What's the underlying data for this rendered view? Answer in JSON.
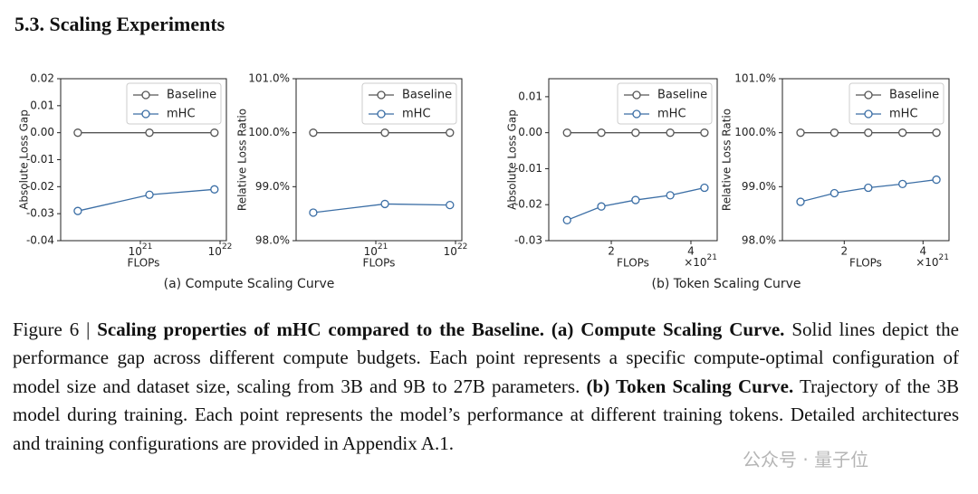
{
  "section_title": "5.3.  Scaling Experiments",
  "chart_data": [
    {
      "type": "line",
      "ylabel": "Absolute Loss Gap",
      "xlabel": "FLOPs",
      "xscale": "log",
      "x": [
        1.64e+20,
        1.3e+21,
        8.5e+21
      ],
      "xlim": [
        1e+20,
        1.2e+22
      ],
      "xticks": [
        {
          "value": 1e+21,
          "label": "10^21"
        },
        {
          "value": 1e+22,
          "label": "10^22"
        }
      ],
      "ylim": [
        -0.04,
        0.02
      ],
      "yticks": [
        -0.04,
        -0.03,
        -0.02,
        -0.01,
        {
          "value": 0,
          "label": "0.00"
        },
        0.01,
        0.02
      ],
      "legend_loc": "upper right",
      "series": [
        {
          "name": "Baseline",
          "color": "#555555",
          "values": [
            0,
            0,
            0
          ]
        },
        {
          "name": "mHC",
          "color": "#3b6ea5",
          "values": [
            -0.029,
            -0.023,
            -0.021
          ]
        }
      ]
    },
    {
      "type": "line",
      "ylabel": "Relative Loss Ratio",
      "xlabel": "FLOPs",
      "xscale": "log",
      "x": [
        1.64e+20,
        1.3e+21,
        8.5e+21
      ],
      "xlim": [
        1e+20,
        1.2e+22
      ],
      "xticks": [
        {
          "value": 1e+21,
          "label": "10^21"
        },
        {
          "value": 1e+22,
          "label": "10^22"
        }
      ],
      "ylim": [
        98,
        101
      ],
      "yticks": [
        {
          "value": 98,
          "label": "98.0%"
        },
        {
          "value": 99,
          "label": "99.0%"
        },
        {
          "value": 100,
          "label": "100.0%"
        },
        {
          "value": 101,
          "label": "101.0%"
        }
      ],
      "legend_loc": "upper right",
      "series": [
        {
          "name": "Baseline",
          "color": "#555555",
          "values": [
            100,
            100,
            100
          ]
        },
        {
          "name": "mHC",
          "color": "#3b6ea5",
          "values": [
            98.52,
            98.68,
            98.66
          ]
        }
      ]
    },
    {
      "type": "line",
      "ylabel": "Absolute Loss Gap",
      "xlabel": "FLOPs",
      "xscale": "linear",
      "x_offset_label": "×10^21",
      "x": [
        0.89,
        1.75,
        2.61,
        3.48,
        4.34
      ],
      "xlim": [
        0.43,
        4.66
      ],
      "xticks": [
        2,
        4
      ],
      "ylim": [
        -0.03,
        0.015
      ],
      "yticks": [
        -0.03,
        -0.02,
        -0.01,
        {
          "value": 0,
          "label": "0.00"
        },
        0.01
      ],
      "legend_loc": "upper right",
      "series": [
        {
          "name": "Baseline",
          "color": "#555555",
          "values": [
            0,
            0,
            0,
            0,
            0
          ]
        },
        {
          "name": "mHC",
          "color": "#3b6ea5",
          "values": [
            -0.0243,
            -0.0205,
            -0.0187,
            -0.0174,
            -0.0153
          ]
        }
      ]
    },
    {
      "type": "line",
      "ylabel": "Relative Loss Ratio",
      "xlabel": "FLOPs",
      "xscale": "linear",
      "x_offset_label": "×10^21",
      "x": [
        0.89,
        1.75,
        2.61,
        3.48,
        4.34
      ],
      "xlim": [
        0.43,
        4.66
      ],
      "xticks": [
        2,
        4
      ],
      "ylim": [
        98,
        101
      ],
      "yticks": [
        {
          "value": 98,
          "label": "98.0%"
        },
        {
          "value": 99,
          "label": "99.0%"
        },
        {
          "value": 100,
          "label": "100.0%"
        },
        {
          "value": 101,
          "label": "101.0%"
        }
      ],
      "legend_loc": "upper right",
      "series": [
        {
          "name": "Baseline",
          "color": "#555555",
          "values": [
            100,
            100,
            100,
            100,
            100
          ]
        },
        {
          "name": "mHC",
          "color": "#3b6ea5",
          "values": [
            98.72,
            98.88,
            98.98,
            99.05,
            99.13
          ]
        }
      ]
    }
  ],
  "subcaptions": [
    "(a) Compute Scaling Curve",
    "(b) Token Scaling Curve"
  ],
  "caption": [
    {
      "text": "Figure 6 | ",
      "bold": false
    },
    {
      "text": "Scaling properties of mHC compared to the Baseline. (a) Compute Scaling Curve.",
      "bold": true
    },
    {
      "text": " Solid lines depict the performance gap across different compute budgets. Each point represents a specific compute-optimal configuration of model size and dataset size, scaling from 3B and 9B to 27B parameters. ",
      "bold": false
    },
    {
      "text": "(b) Token Scaling Curve.",
      "bold": true
    },
    {
      "text": " Trajectory of the 3B model during training. Each point represents the model’s performance at different training tokens. Detailed architectures and training configurations are provided in Appendix A.1.",
      "bold": false
    }
  ],
  "watermark": "公众号 · 量子位"
}
